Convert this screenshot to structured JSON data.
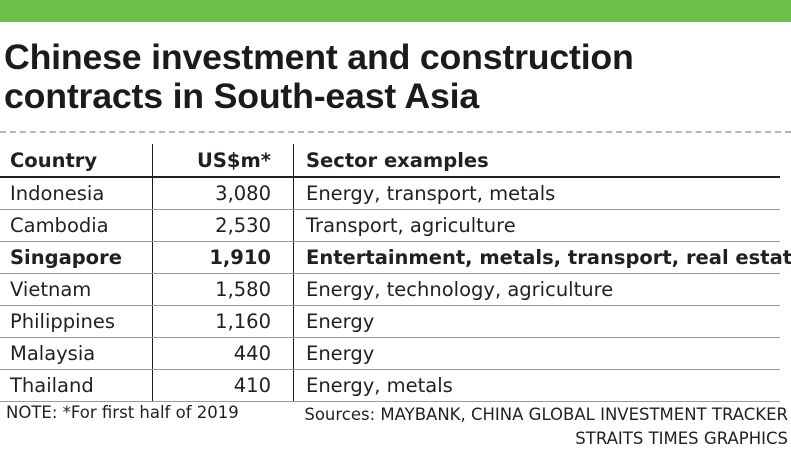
{
  "header": {
    "accent_color": "#6cc04a",
    "title_line_1": "Chinese investment and construction",
    "title_line_2": "contracts in South-east Asia"
  },
  "chart_data": {
    "type": "table",
    "columns": [
      "Country",
      "US$m*",
      "Sector examples"
    ],
    "rows": [
      {
        "country": "Indonesia",
        "value": "3,080",
        "sectors": "Energy, transport, metals",
        "highlight": false
      },
      {
        "country": "Cambodia",
        "value": "2,530",
        "sectors": "Transport, agriculture",
        "highlight": false
      },
      {
        "country": "Singapore",
        "value": "1,910",
        "sectors": "Entertainment, metals, transport, real estate",
        "highlight": true
      },
      {
        "country": "Vietnam",
        "value": "1,580",
        "sectors": "Energy, technology, agriculture",
        "highlight": false
      },
      {
        "country": "Philippines",
        "value": "1,160",
        "sectors": "Energy",
        "highlight": false
      },
      {
        "country": "Malaysia",
        "value": "440",
        "sectors": "Energy",
        "highlight": false
      },
      {
        "country": "Thailand",
        "value": "410",
        "sectors": "Energy, metals",
        "highlight": false
      }
    ]
  },
  "footer": {
    "note": "NOTE: *For first half of 2019",
    "sources_line_1": "Sources: MAYBANK, CHINA GLOBAL INVESTMENT TRACKER",
    "sources_line_2": "STRAITS TIMES GRAPHICS"
  }
}
